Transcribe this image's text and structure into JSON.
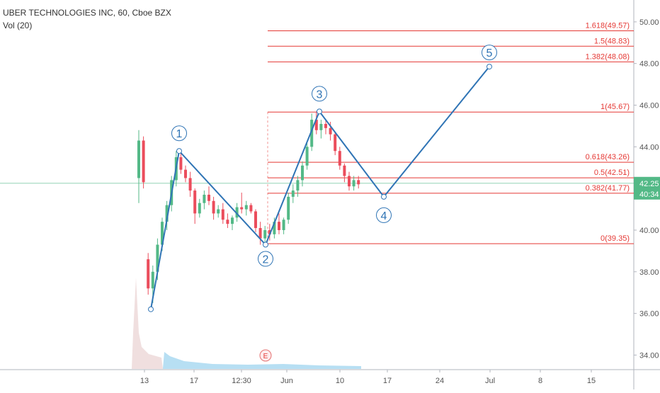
{
  "chart_data": {
    "type": "candlestick",
    "title": "UBER TECHNOLOGIES INC, 60, Cboe BZX",
    "indicator": "Vol (20)",
    "x_labels": [
      "13",
      "17",
      "12:30",
      "Jun",
      "10",
      "17",
      "24",
      "Jul",
      "8",
      "15"
    ],
    "open": [
      42.5,
      44.3,
      38.6,
      37.2,
      38.0,
      39.3,
      40.4,
      41.2,
      42.4,
      43.5,
      42.9,
      42.5,
      41.9,
      40.8,
      41.3,
      41.7,
      41.4,
      40.8,
      41.0,
      40.5,
      40.3,
      40.6,
      41.1,
      41.0,
      41.2,
      40.9,
      40.1,
      39.6,
      40.0,
      39.8,
      40.4,
      40.0,
      40.5,
      41.6,
      41.9,
      42.4,
      43.1,
      44.0,
      45.3,
      44.8,
      45.1,
      44.9,
      44.6,
      43.8,
      43.1,
      42.6,
      42.1,
      42.4
    ],
    "high": [
      44.8,
      44.5,
      38.9,
      38.3,
      39.6,
      40.6,
      41.4,
      42.6,
      43.8,
      43.7,
      43.1,
      42.8,
      42.0,
      41.5,
      41.9,
      42.1,
      41.6,
      41.2,
      41.3,
      40.8,
      40.7,
      41.3,
      41.8,
      41.4,
      41.3,
      41.0,
      40.4,
      40.2,
      40.3,
      40.6,
      40.8,
      40.6,
      41.8,
      42.2,
      42.6,
      43.3,
      44.2,
      45.6,
      45.7,
      45.3,
      45.3,
      45.2,
      44.7,
      44.0,
      43.2,
      42.8,
      42.6,
      42.6
    ],
    "low": [
      41.3,
      42.0,
      36.9,
      36.5,
      37.6,
      39.0,
      40.0,
      40.9,
      42.1,
      42.7,
      42.3,
      41.6,
      40.3,
      40.6,
      41.0,
      41.2,
      40.5,
      40.6,
      40.3,
      40.1,
      40.0,
      40.4,
      40.8,
      40.7,
      40.8,
      39.9,
      39.3,
      39.3,
      39.5,
      39.6,
      39.8,
      39.8,
      40.3,
      41.3,
      41.6,
      42.1,
      42.9,
      43.8,
      44.6,
      44.4,
      44.6,
      44.3,
      43.6,
      42.9,
      42.3,
      41.9,
      41.9,
      42.0
    ],
    "close": [
      44.3,
      42.3,
      37.2,
      38.0,
      39.3,
      40.4,
      41.2,
      42.4,
      43.5,
      42.9,
      42.5,
      41.9,
      40.8,
      41.3,
      41.7,
      41.4,
      40.8,
      41.0,
      40.5,
      40.3,
      40.6,
      41.1,
      41.0,
      41.2,
      40.9,
      40.1,
      39.6,
      40.0,
      39.8,
      40.4,
      40.0,
      40.5,
      41.6,
      41.9,
      42.4,
      43.1,
      44.0,
      45.3,
      44.8,
      45.1,
      44.9,
      44.6,
      43.8,
      43.1,
      42.6,
      42.1,
      42.4,
      42.2
    ],
    "up_color": "#53b987",
    "down_color": "#eb4d5c",
    "ylim": [
      33.3,
      51.05
    ],
    "yticks": [
      {
        "value": 50,
        "label": "50.00"
      },
      {
        "value": 48,
        "label": "48.00"
      },
      {
        "value": 46,
        "label": "46.00"
      },
      {
        "value": 44,
        "label": "44.00"
      },
      {
        "value": 42,
        "label": "42.00"
      },
      {
        "value": 40,
        "label": "40.00"
      },
      {
        "value": 38,
        "label": "38.00"
      },
      {
        "value": 36,
        "label": "36.00"
      },
      {
        "value": 34,
        "label": "34.00"
      }
    ],
    "last_price": 42.25,
    "countdown": "40:34",
    "fib_levels": {
      "color": "#e53935",
      "values": [
        49.57,
        48.83,
        48.08,
        45.67,
        43.26,
        42.51,
        41.77,
        39.35
      ],
      "value_labels": [
        "1.618(49.57)",
        "1.5(48.83)",
        "1.382(48.08)",
        "1(45.67)",
        "0.618(43.26)",
        "0.5(42.51)",
        "0.382(41.77)",
        "0(39.35)"
      ]
    },
    "wave": {
      "color": "#2f74b5",
      "labels": [
        null,
        "1",
        "2",
        "3",
        "4",
        "5"
      ],
      "values": [
        36.2,
        43.8,
        39.3,
        45.7,
        41.6,
        47.85
      ]
    },
    "event": "E"
  }
}
